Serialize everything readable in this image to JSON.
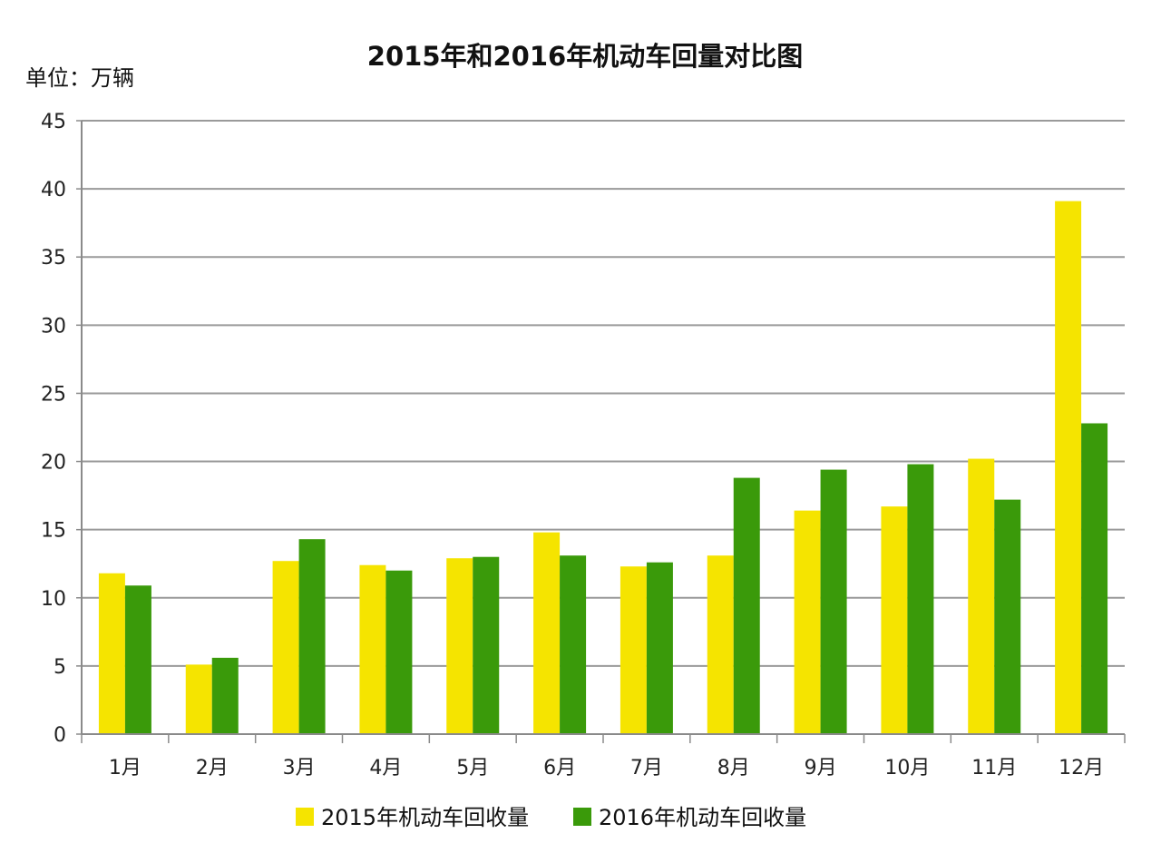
{
  "chart_data": {
    "type": "bar",
    "title": "2015年和2016年机动车回量对比图",
    "unit_label": "单位：万辆",
    "categories": [
      "1月",
      "2月",
      "3月",
      "4月",
      "5月",
      "6月",
      "7月",
      "8月",
      "9月",
      "10月",
      "11月",
      "12月"
    ],
    "series": [
      {
        "name": "2015年机动车回收量",
        "color": "#f5e400",
        "values": [
          11.8,
          5.1,
          12.7,
          12.4,
          12.9,
          14.8,
          12.3,
          13.1,
          16.4,
          16.7,
          20.2,
          39.1
        ]
      },
      {
        "name": "2016年机动车回收量",
        "color": "#3a9a0a",
        "values": [
          10.9,
          5.6,
          14.3,
          12.0,
          13.0,
          13.1,
          12.6,
          18.8,
          19.4,
          19.8,
          17.2,
          22.8
        ]
      }
    ],
    "ylim": [
      0,
      45
    ],
    "yticks": [
      0,
      5,
      10,
      15,
      20,
      25,
      30,
      35,
      40,
      45
    ],
    "grid": true,
    "legend_position": "bottom"
  }
}
